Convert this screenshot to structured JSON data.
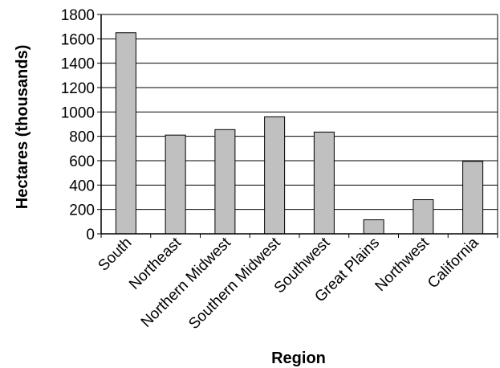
{
  "chart_data": {
    "type": "bar",
    "title": "",
    "xlabel": "Region",
    "ylabel": "Hectares (thousands)",
    "ylim": [
      0,
      1800
    ],
    "yticks": [
      0,
      200,
      400,
      600,
      800,
      1000,
      1200,
      1400,
      1600,
      1800
    ],
    "grid": true,
    "categories": [
      "South",
      "Northeast",
      "Northern Midwest",
      "Southern Midwest",
      "Southwest",
      "Great Plains",
      "Northwest",
      "California"
    ],
    "values": [
      1650,
      810,
      855,
      960,
      835,
      115,
      280,
      595
    ],
    "bar_color": "#c0c0c0",
    "bar_edge_color": "#000000"
  }
}
